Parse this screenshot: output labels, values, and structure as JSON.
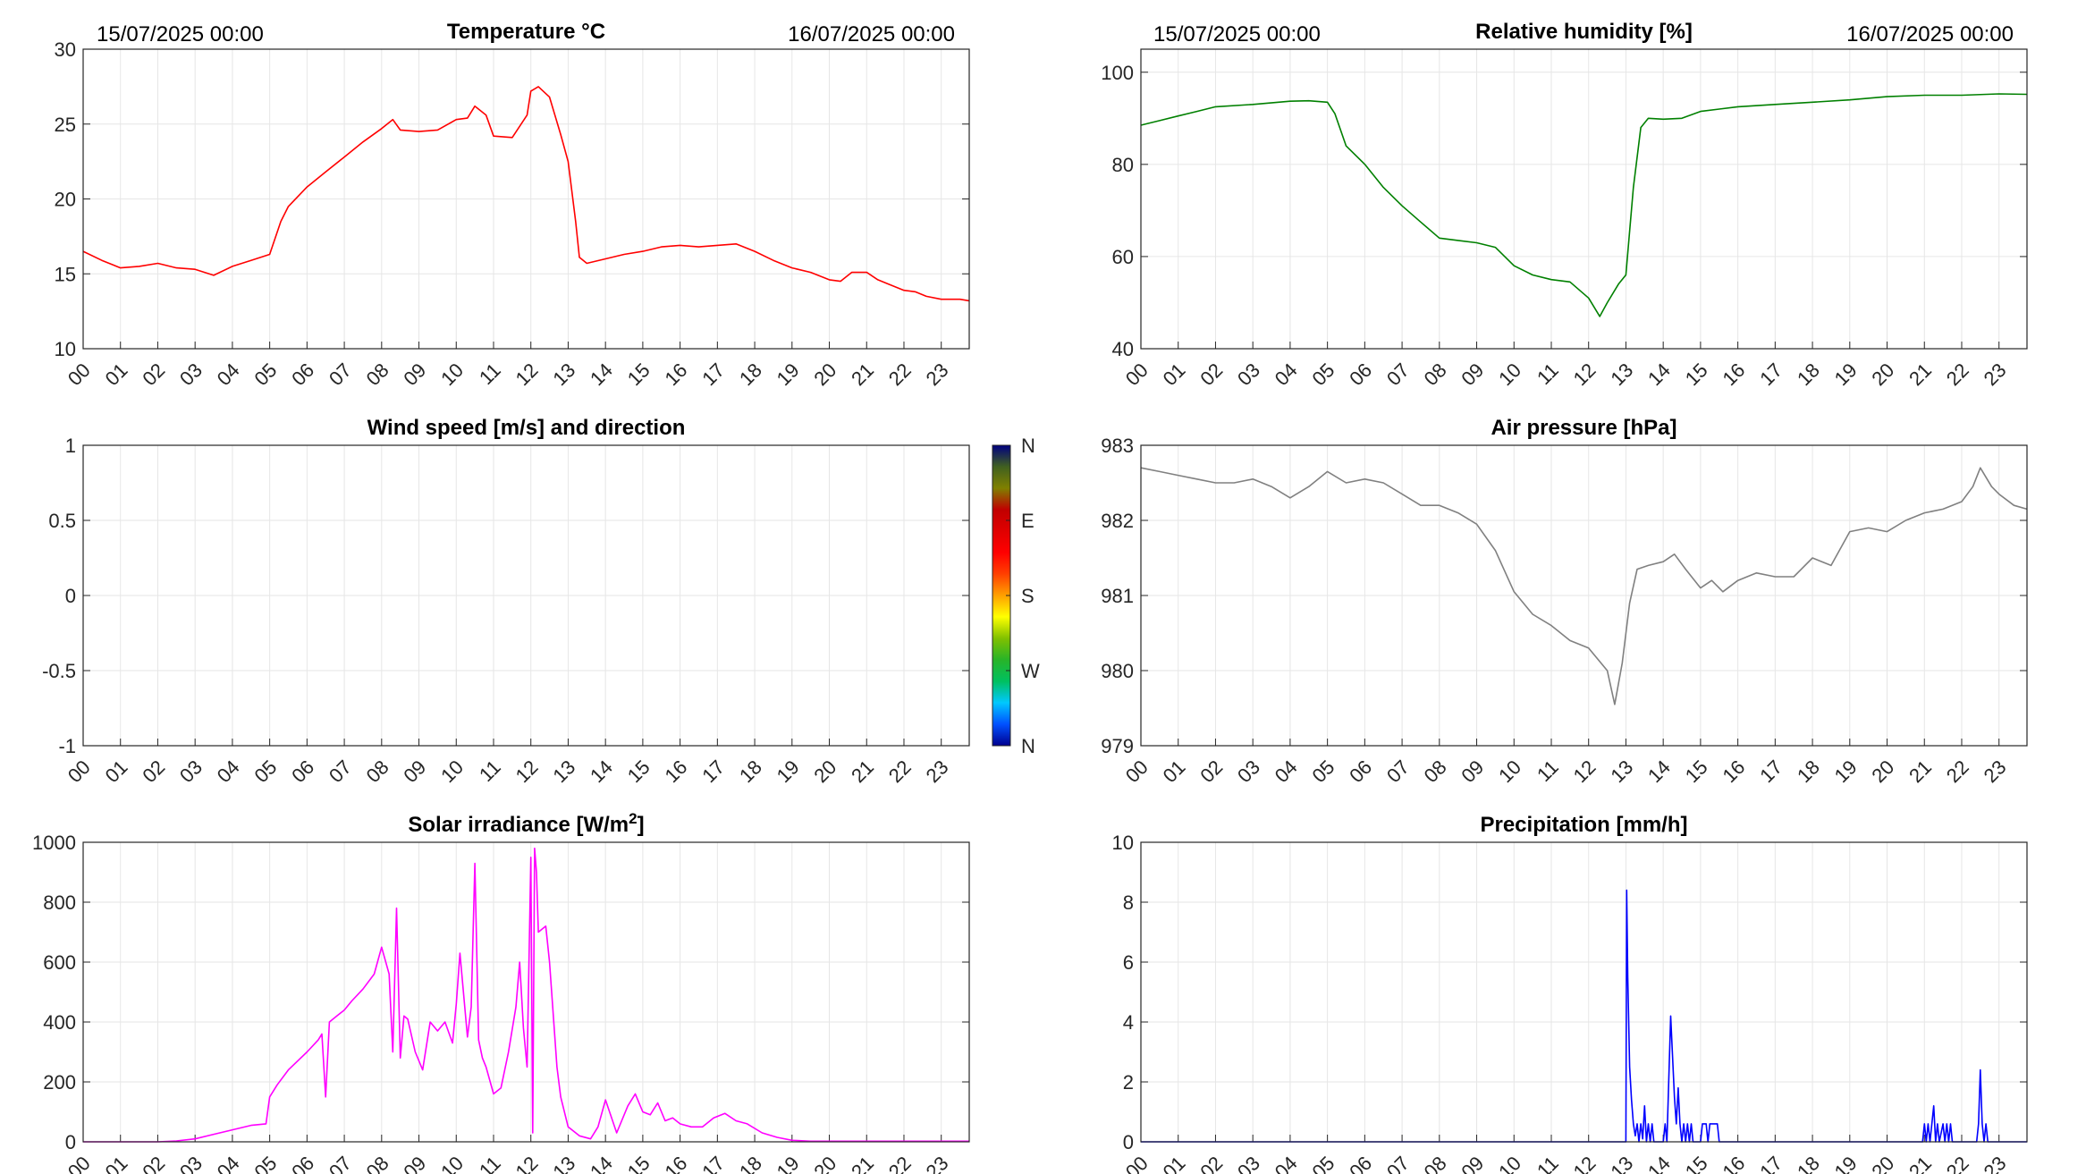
{
  "figure": {
    "date_start": "15/07/2025 00:00",
    "date_end": "16/07/2025 00:00",
    "hour_labels": [
      "00",
      "01",
      "02",
      "03",
      "04",
      "05",
      "06",
      "07",
      "08",
      "09",
      "10",
      "11",
      "12",
      "13",
      "14",
      "15",
      "16",
      "17",
      "18",
      "19",
      "20",
      "21",
      "22",
      "23"
    ]
  },
  "colors": {
    "temperature": "#ff0000",
    "humidity": "#008000",
    "pressure": "#808080",
    "solar": "#ff00ff",
    "precipitation": "#0000ff",
    "axis": "#262626",
    "grid": "#e6e6e6"
  },
  "chart_data": [
    {
      "id": "temperature",
      "type": "line",
      "title": "Temperature °C",
      "show_dates": true,
      "xlim": [
        0,
        23.75
      ],
      "ylim": [
        10,
        30
      ],
      "yticks": [
        10,
        15,
        20,
        25,
        30
      ],
      "ytick_labels": [
        "10",
        "15",
        "20",
        "25",
        "30"
      ],
      "series": [
        {
          "color": "#ff0000",
          "x": [
            0,
            0.5,
            1,
            1.5,
            2,
            2.5,
            3,
            3.5,
            4,
            4.5,
            5,
            5.3,
            5.5,
            6,
            6.5,
            7,
            7.5,
            8,
            8.3,
            8.5,
            9,
            9.5,
            10,
            10.3,
            10.5,
            10.8,
            11,
            11.5,
            11.9,
            12,
            12.2,
            12.5,
            12.8,
            13,
            13.2,
            13.3,
            13.5,
            14,
            14.5,
            15,
            15.5,
            16,
            16.5,
            17,
            17.5,
            18,
            18.5,
            19,
            19.5,
            20,
            20.3,
            20.6,
            21,
            21.3,
            21.6,
            22,
            22.3,
            22.6,
            23,
            23.5,
            23.75
          ],
          "y": [
            16.5,
            15.9,
            15.4,
            15.5,
            15.7,
            15.4,
            15.3,
            14.9,
            15.5,
            15.9,
            16.3,
            18.5,
            19.5,
            20.8,
            21.8,
            22.8,
            23.8,
            24.7,
            25.3,
            24.6,
            24.5,
            24.6,
            25.3,
            25.4,
            26.2,
            25.6,
            24.2,
            24.1,
            25.6,
            27.2,
            27.5,
            26.8,
            24.3,
            22.5,
            18.5,
            16.1,
            15.7,
            16.0,
            16.3,
            16.5,
            16.8,
            16.9,
            16.8,
            16.9,
            17.0,
            16.5,
            15.9,
            15.4,
            15.1,
            14.6,
            14.5,
            15.1,
            15.1,
            14.6,
            14.3,
            13.9,
            13.8,
            13.5,
            13.3,
            13.3,
            13.2
          ]
        }
      ]
    },
    {
      "id": "humidity",
      "type": "line",
      "title": "Relative humidity [%]",
      "show_dates": true,
      "xlim": [
        0,
        23.75
      ],
      "ylim": [
        40,
        105
      ],
      "yticks": [
        40,
        60,
        80,
        100
      ],
      "ytick_labels": [
        "40",
        "60",
        "80",
        "100"
      ],
      "series": [
        {
          "color": "#008000",
          "x": [
            0,
            0.5,
            1,
            1.5,
            2,
            3,
            4,
            4.5,
            5,
            5.2,
            5.5,
            6,
            6.5,
            7,
            7.5,
            8,
            8.5,
            9,
            9.5,
            10,
            10.5,
            11,
            11.5,
            12,
            12.3,
            12.5,
            12.8,
            13,
            13.2,
            13.4,
            13.6,
            14,
            14.5,
            15,
            15.5,
            16,
            17,
            18,
            19,
            20,
            21,
            22,
            23,
            23.75
          ],
          "y": [
            88.5,
            89.5,
            90.5,
            91.5,
            92.5,
            93,
            93.7,
            93.8,
            93.5,
            91,
            84,
            80,
            75,
            71,
            67.5,
            64,
            63.5,
            63,
            62,
            58,
            56,
            55,
            54.5,
            51,
            47,
            50,
            54,
            56,
            75,
            88,
            90,
            89.8,
            90,
            91.5,
            92,
            92.5,
            93,
            93.5,
            94,
            94.7,
            95,
            95,
            95.3,
            95.2
          ]
        }
      ]
    },
    {
      "id": "wind",
      "type": "scatter",
      "title": "Wind speed [m/s] and direction",
      "show_dates": false,
      "xlim": [
        0,
        23.75
      ],
      "ylim": [
        -1,
        1
      ],
      "yticks": [
        -1,
        -0.5,
        0,
        0.5,
        1
      ],
      "ytick_labels": [
        "-1",
        "-0.5",
        "0",
        "0.5",
        "1"
      ],
      "series": [],
      "colorbar": {
        "labels": [
          "N",
          "W",
          "S",
          "E",
          "N"
        ],
        "colors": [
          "#00008f",
          "#0050ff",
          "#00c8ff",
          "#00c060",
          "#28b428",
          "#80c000",
          "#ffff00",
          "#ffa000",
          "#ff4000",
          "#ff0000",
          "#e00000",
          "#c00000",
          "#808000",
          "#406020",
          "#00007f"
        ]
      }
    },
    {
      "id": "pressure",
      "type": "line",
      "title": "Air pressure [hPa]",
      "show_dates": false,
      "xlim": [
        0,
        23.75
      ],
      "ylim": [
        979,
        983
      ],
      "yticks": [
        979,
        980,
        981,
        982,
        983
      ],
      "ytick_labels": [
        "979",
        "980",
        "981",
        "982",
        "983"
      ],
      "series": [
        {
          "color": "#808080",
          "x": [
            0,
            0.5,
            1,
            1.5,
            2,
            2.5,
            3,
            3.5,
            4,
            4.5,
            5,
            5.5,
            6,
            6.5,
            7,
            7.5,
            8,
            8.5,
            9,
            9.5,
            10,
            10.5,
            11,
            11.5,
            12,
            12.5,
            12.7,
            12.9,
            13.1,
            13.3,
            13.6,
            14,
            14.3,
            14.6,
            15,
            15.3,
            15.6,
            16,
            16.5,
            17,
            17.5,
            18,
            18.5,
            19,
            19.5,
            20,
            20.5,
            21,
            21.5,
            22,
            22.3,
            22.5,
            22.8,
            23,
            23.4,
            23.75
          ],
          "y": [
            982.7,
            982.65,
            982.6,
            982.55,
            982.5,
            982.5,
            982.55,
            982.45,
            982.3,
            982.45,
            982.65,
            982.5,
            982.55,
            982.5,
            982.35,
            982.2,
            982.2,
            982.1,
            981.95,
            981.6,
            981.05,
            980.75,
            980.6,
            980.4,
            980.3,
            980.0,
            979.55,
            980.1,
            980.9,
            981.35,
            981.4,
            981.45,
            981.55,
            981.35,
            981.1,
            981.2,
            981.05,
            981.2,
            981.3,
            981.25,
            981.25,
            981.5,
            981.4,
            981.85,
            981.9,
            981.85,
            982.0,
            982.1,
            982.15,
            982.25,
            982.45,
            982.7,
            982.45,
            982.35,
            982.2,
            982.15
          ]
        }
      ]
    },
    {
      "id": "solar",
      "type": "line",
      "title": "Solar irradiance [W/m",
      "title_sup": "2",
      "title_end": "]",
      "show_dates": false,
      "xlim": [
        0,
        23.75
      ],
      "ylim": [
        0,
        1000
      ],
      "yticks": [
        0,
        200,
        400,
        600,
        800,
        1000
      ],
      "ytick_labels": [
        "0",
        "200",
        "400",
        "600",
        "800",
        "1000"
      ],
      "series": [
        {
          "color": "#ff00ff",
          "x": [
            0,
            2,
            2.5,
            3,
            3.5,
            4,
            4.5,
            4.9,
            5,
            5.2,
            5.5,
            6,
            6.3,
            6.4,
            6.5,
            6.6,
            6.8,
            7,
            7.2,
            7.5,
            7.8,
            8,
            8.2,
            8.3,
            8.4,
            8.5,
            8.6,
            8.7,
            8.9,
            9.1,
            9.3,
            9.5,
            9.7,
            9.9,
            10,
            10.1,
            10.3,
            10.4,
            10.5,
            10.6,
            10.7,
            10.8,
            11,
            11.2,
            11.4,
            11.6,
            11.7,
            11.8,
            11.9,
            12,
            12.05,
            12.1,
            12.15,
            12.2,
            12.4,
            12.5,
            12.7,
            12.8,
            13,
            13.3,
            13.6,
            13.8,
            14,
            14.3,
            14.6,
            14.8,
            15,
            15.2,
            15.4,
            15.6,
            15.8,
            16,
            16.3,
            16.6,
            16.9,
            17.2,
            17.5,
            17.8,
            18.2,
            18.6,
            19,
            19.5,
            20,
            21,
            22,
            23,
            23.75
          ],
          "y": [
            0,
            0,
            3,
            10,
            25,
            40,
            55,
            60,
            150,
            190,
            240,
            300,
            340,
            360,
            150,
            400,
            420,
            440,
            470,
            510,
            560,
            650,
            560,
            300,
            780,
            280,
            420,
            410,
            300,
            240,
            400,
            370,
            400,
            330,
            460,
            630,
            350,
            450,
            930,
            340,
            280,
            250,
            160,
            180,
            300,
            450,
            600,
            380,
            250,
            950,
            30,
            980,
            900,
            700,
            720,
            600,
            250,
            150,
            50,
            20,
            10,
            50,
            140,
            30,
            120,
            160,
            100,
            90,
            130,
            70,
            80,
            60,
            50,
            50,
            80,
            95,
            70,
            60,
            30,
            15,
            5,
            2,
            2,
            2,
            2,
            2,
            2
          ]
        }
      ]
    },
    {
      "id": "precipitation",
      "type": "line",
      "title": "Precipitation [mm/h]",
      "show_dates": false,
      "xlim": [
        0,
        23.75
      ],
      "ylim": [
        0,
        10
      ],
      "yticks": [
        0,
        2,
        4,
        6,
        8,
        10
      ],
      "ytick_labels": [
        "0",
        "2",
        "4",
        "6",
        "8",
        "10"
      ],
      "series": [
        {
          "color": "#0000ff",
          "x": [
            0,
            13.0,
            13.02,
            13.05,
            13.1,
            13.15,
            13.2,
            13.25,
            13.3,
            13.35,
            13.4,
            13.45,
            13.5,
            13.55,
            13.6,
            13.65,
            13.7,
            13.75,
            13.8,
            14.0,
            14.05,
            14.1,
            14.2,
            14.3,
            14.35,
            14.4,
            14.45,
            14.5,
            14.55,
            14.6,
            14.65,
            14.7,
            14.75,
            14.8,
            15.0,
            15.05,
            15.15,
            15.2,
            15.25,
            15.35,
            15.45,
            15.5,
            15.55,
            20.95,
            21.0,
            21.05,
            21.1,
            21.15,
            21.2,
            21.25,
            21.3,
            21.35,
            21.4,
            21.5,
            21.55,
            21.6,
            21.65,
            21.7,
            21.75,
            22.4,
            22.45,
            22.5,
            22.55,
            22.6,
            22.65,
            22.7,
            23.75
          ],
          "y": [
            0,
            0,
            8.4,
            5.5,
            2.5,
            1.4,
            0.6,
            0.2,
            0.6,
            0,
            0.6,
            0.1,
            1.2,
            0,
            0.6,
            0,
            0.6,
            0,
            0,
            0,
            0.6,
            0,
            4.2,
            1.5,
            0.6,
            1.8,
            0.6,
            0,
            0.6,
            0,
            0.6,
            0,
            0.6,
            0,
            0,
            0.6,
            0.6,
            0,
            0.6,
            0.6,
            0.6,
            0,
            0,
            0,
            0.6,
            0,
            0.6,
            0,
            0.6,
            1.2,
            0,
            0.6,
            0,
            0.6,
            0,
            0.6,
            0,
            0.6,
            0,
            0,
            0.6,
            2.4,
            0.6,
            0,
            0.6,
            0,
            0
          ]
        }
      ]
    }
  ]
}
